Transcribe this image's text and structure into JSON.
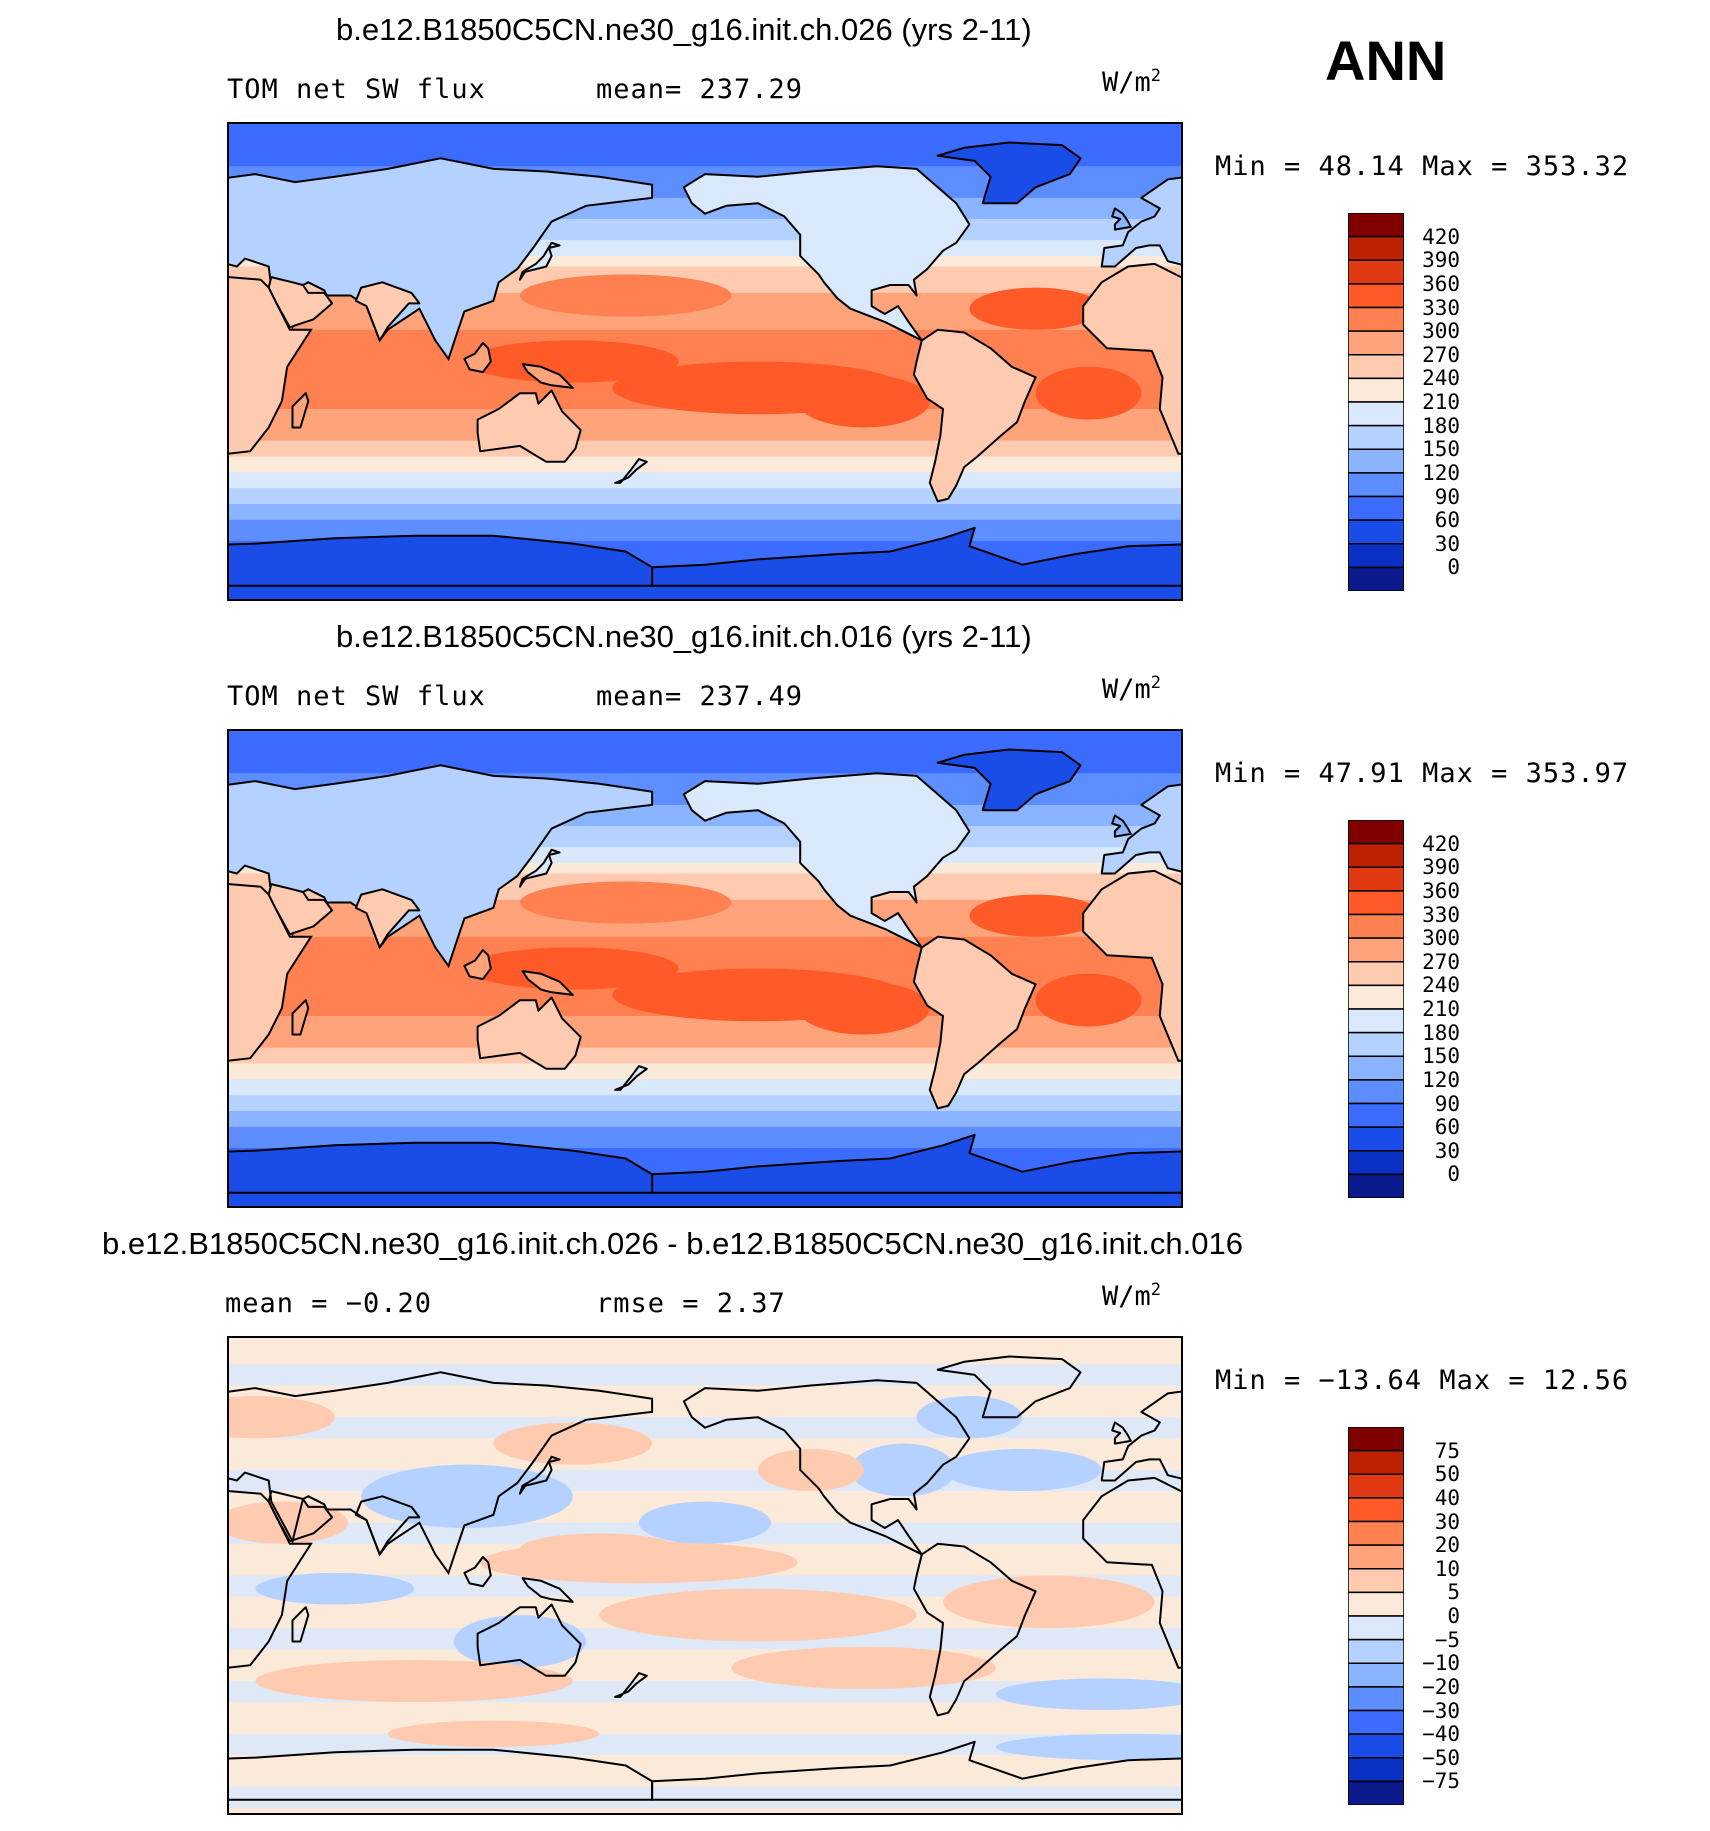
{
  "season": "ANN",
  "unit_base": "W/m",
  "unit_exp": "2",
  "panels": [
    {
      "title": "b.e12.B1850C5CN.ne30_g16.init.ch.026 (yrs 2-11)",
      "left_label": "TOM net SW flux",
      "mean_label": "mean= 237.29",
      "minmax": "Min =   48.14 Max = 353.32",
      "colorbar_levels": [
        "420",
        "390",
        "360",
        "330",
        "300",
        "270",
        "240",
        "210",
        "180",
        "150",
        "120",
        "90",
        "60",
        "30",
        "0"
      ],
      "colorbar_colors": [
        "#800000",
        "#be2100",
        "#e13a12",
        "#ff5a27",
        "#ff8050",
        "#ffa37a",
        "#ffcbb0",
        "#fbeada",
        "#d9e8fa",
        "#b5d1ff",
        "#8ab4ff",
        "#5c8eff",
        "#3b6cff",
        "#1a4ce8",
        "#0a30c4",
        "#0a1a8c"
      ]
    },
    {
      "title": "b.e12.B1850C5CN.ne30_g16.init.ch.016 (yrs 2-11)",
      "left_label": "TOM net SW flux",
      "mean_label": "mean= 237.49",
      "minmax": "Min =   47.91 Max = 353.97",
      "colorbar_levels": [
        "420",
        "390",
        "360",
        "330",
        "300",
        "270",
        "240",
        "210",
        "180",
        "150",
        "120",
        "90",
        "60",
        "30",
        "0"
      ],
      "colorbar_colors": [
        "#800000",
        "#be2100",
        "#e13a12",
        "#ff5a27",
        "#ff8050",
        "#ffa37a",
        "#ffcbb0",
        "#fbeada",
        "#d9e8fa",
        "#b5d1ff",
        "#8ab4ff",
        "#5c8eff",
        "#3b6cff",
        "#1a4ce8",
        "#0a30c4",
        "#0a1a8c"
      ]
    },
    {
      "title": "b.e12.B1850C5CN.ne30_g16.init.ch.026 - b.e12.B1850C5CN.ne30_g16.init.ch.016",
      "left_label": "mean =   −0.20",
      "mean_label": "rmse =    2.37",
      "minmax": "Min = −13.64 Max =   12.56",
      "colorbar_levels": [
        "75",
        "50",
        "40",
        "30",
        "20",
        "10",
        "5",
        "0",
        "−5",
        "−10",
        "−20",
        "−30",
        "−40",
        "−50",
        "−75"
      ],
      "colorbar_colors": [
        "#800000",
        "#be2100",
        "#e13a12",
        "#ff5a27",
        "#ff8050",
        "#ffa37a",
        "#ffcbb0",
        "#fbeada",
        "#d9e8fa",
        "#b5d1ff",
        "#8ab4ff",
        "#5c8eff",
        "#3b6cff",
        "#1a4ce8",
        "#0a30c4",
        "#0a1a8c"
      ]
    }
  ],
  "chart_data": [
    {
      "type": "heatmap",
      "title": "b.e12.B1850C5CN.ne30_g16.init.ch.026 (yrs 2-11)",
      "variable": "TOM net SW flux",
      "unit": "W/m2",
      "mean": 237.29,
      "min": 48.14,
      "max": 353.32,
      "contour_levels": [
        0,
        30,
        60,
        90,
        120,
        150,
        180,
        210,
        240,
        270,
        300,
        330,
        360,
        390,
        420
      ],
      "zonal_profile": [
        {
          "lat": 80,
          "value": 75
        },
        {
          "lat": 65,
          "value": 110
        },
        {
          "lat": 50,
          "value": 160
        },
        {
          "lat": 35,
          "value": 240
        },
        {
          "lat": 20,
          "value": 290
        },
        {
          "lat": 5,
          "value": 310
        },
        {
          "lat": -10,
          "value": 310
        },
        {
          "lat": -25,
          "value": 290
        },
        {
          "lat": -40,
          "value": 220
        },
        {
          "lat": -55,
          "value": 140
        },
        {
          "lat": -70,
          "value": 80
        },
        {
          "lat": -85,
          "value": 50
        }
      ]
    },
    {
      "type": "heatmap",
      "title": "b.e12.B1850C5CN.ne30_g16.init.ch.016 (yrs 2-11)",
      "variable": "TOM net SW flux",
      "unit": "W/m2",
      "mean": 237.49,
      "min": 47.91,
      "max": 353.97,
      "contour_levels": [
        0,
        30,
        60,
        90,
        120,
        150,
        180,
        210,
        240,
        270,
        300,
        330,
        360,
        390,
        420
      ],
      "zonal_profile": [
        {
          "lat": 80,
          "value": 75
        },
        {
          "lat": 65,
          "value": 110
        },
        {
          "lat": 50,
          "value": 160
        },
        {
          "lat": 35,
          "value": 240
        },
        {
          "lat": 20,
          "value": 290
        },
        {
          "lat": 5,
          "value": 310
        },
        {
          "lat": -10,
          "value": 310
        },
        {
          "lat": -25,
          "value": 290
        },
        {
          "lat": -40,
          "value": 220
        },
        {
          "lat": -55,
          "value": 140
        },
        {
          "lat": -70,
          "value": 80
        },
        {
          "lat": -85,
          "value": 50
        }
      ]
    },
    {
      "type": "heatmap",
      "title": "b.e12.B1850C5CN.ne30_g16.init.ch.026 - b.e12.B1850C5CN.ne30_g16.init.ch.016",
      "unit": "W/m2",
      "mean": -0.2,
      "rmse": 2.37,
      "min": -13.64,
      "max": 12.56,
      "contour_levels": [
        -75,
        -50,
        -40,
        -30,
        -20,
        -10,
        -5,
        0,
        5,
        10,
        20,
        30,
        40,
        50,
        75
      ]
    }
  ]
}
